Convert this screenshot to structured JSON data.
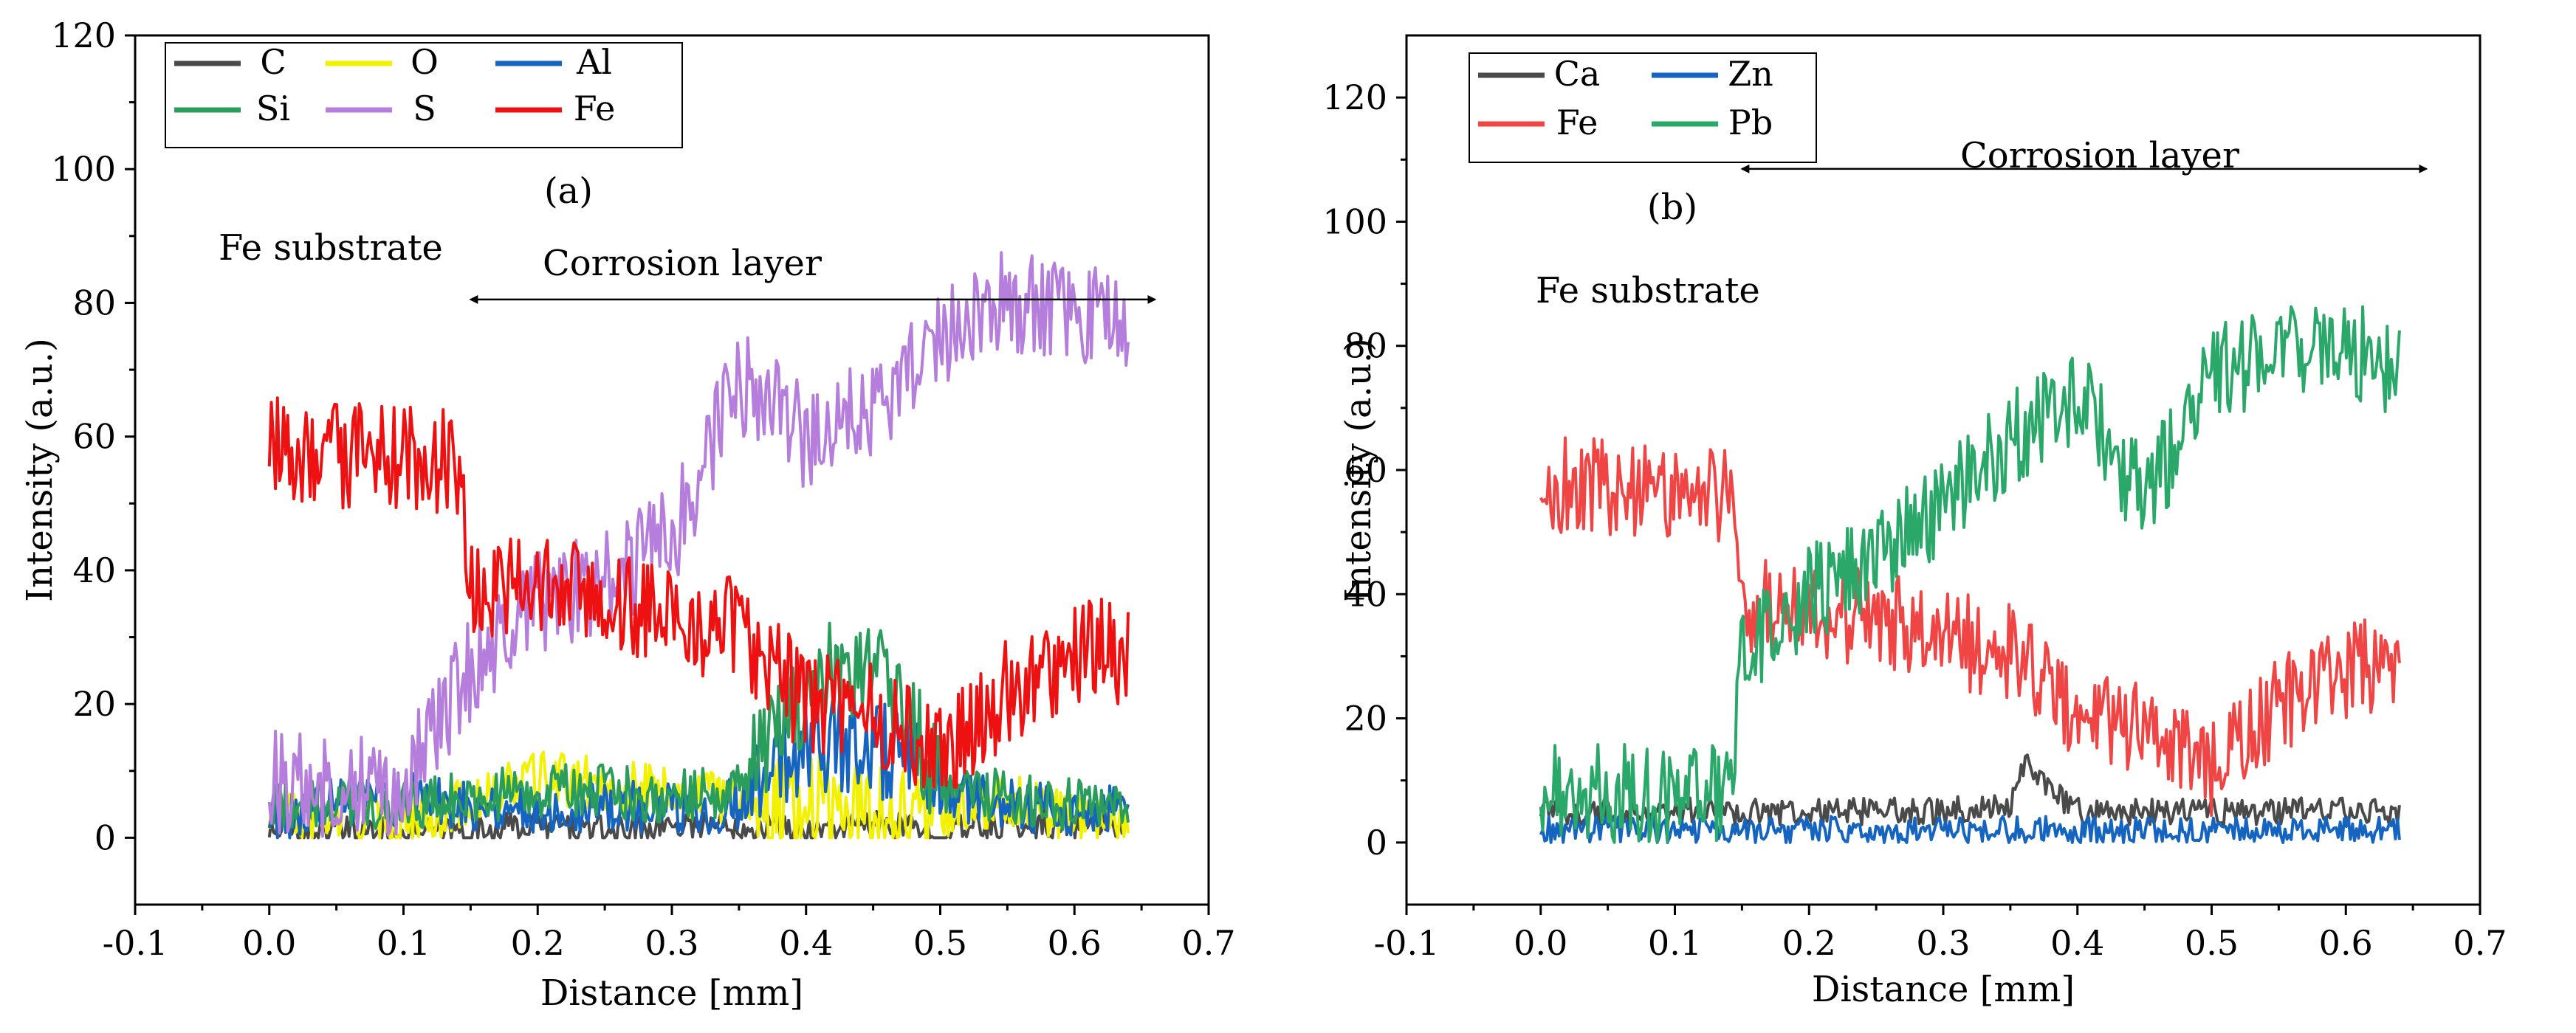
{
  "chart_data": [
    {
      "panel_label": "(a)",
      "type": "line",
      "xlabel": "Distance [mm]",
      "ylabel": "Intensity (a.u.)",
      "xlim": [
        -0.1,
        0.7
      ],
      "ylim": [
        -10,
        120
      ],
      "xticks": [
        "-0.1",
        "0.0",
        "0.1",
        "0.2",
        "0.3",
        "0.4",
        "0.5",
        "0.6",
        "0.7"
      ],
      "xtick_values": [
        -0.1,
        0.0,
        0.1,
        0.2,
        0.3,
        0.4,
        0.5,
        0.6,
        0.7
      ],
      "yticks": [
        "0",
        "20",
        "40",
        "60",
        "80",
        "100",
        "120"
      ],
      "ytick_values": [
        0,
        20,
        40,
        60,
        80,
        100,
        120
      ],
      "legend_position": "top-left",
      "legend_columns": 3,
      "annotations": {
        "substrate": "Fe substrate",
        "layer": "Corrosion layer",
        "arrow_x": [
          0.15,
          0.66
        ],
        "arrow_y": 80.5
      },
      "series": [
        {
          "name": "C",
          "color": "#4a4a4a",
          "x": [
            0.0,
            0.05,
            0.1,
            0.15,
            0.2,
            0.25,
            0.3,
            0.35,
            0.4,
            0.45,
            0.5,
            0.55,
            0.6,
            0.64
          ],
          "y": [
            1,
            1,
            1,
            1,
            2,
            1,
            2,
            2,
            1,
            2,
            1,
            2,
            2,
            2
          ]
        },
        {
          "name": "O",
          "color": "#f2f200",
          "x": [
            0.0,
            0.05,
            0.1,
            0.15,
            0.2,
            0.25,
            0.3,
            0.35,
            0.4,
            0.45,
            0.5,
            0.55,
            0.6,
            0.64
          ],
          "y": [
            3,
            3,
            3,
            5,
            9,
            8,
            7,
            6,
            5,
            4,
            4,
            6,
            3,
            3
          ]
        },
        {
          "name": "Al",
          "color": "#1565c0",
          "x": [
            0.0,
            0.05,
            0.1,
            0.15,
            0.2,
            0.25,
            0.3,
            0.35,
            0.4,
            0.45,
            0.5,
            0.55,
            0.6,
            0.64
          ],
          "y": [
            3,
            5,
            6,
            5,
            4,
            5,
            4,
            5,
            15,
            14,
            7,
            5,
            4,
            4
          ]
        },
        {
          "name": "Si",
          "color": "#2a9d5c",
          "x": [
            0.0,
            0.05,
            0.1,
            0.15,
            0.2,
            0.25,
            0.3,
            0.35,
            0.4,
            0.45,
            0.5,
            0.55,
            0.6,
            0.64
          ],
          "y": [
            5,
            5,
            5,
            6,
            7,
            7,
            6,
            7,
            22,
            28,
            8,
            6,
            5,
            6
          ]
        },
        {
          "name": "S",
          "color": "#b57edc",
          "x": [
            0.0,
            0.05,
            0.1,
            0.15,
            0.2,
            0.25,
            0.3,
            0.35,
            0.4,
            0.45,
            0.5,
            0.55,
            0.6,
            0.64
          ],
          "y": [
            8,
            8,
            8,
            25,
            35,
            38,
            45,
            68,
            60,
            65,
            75,
            80,
            80,
            75
          ]
        },
        {
          "name": "Fe",
          "color": "#ee1111",
          "x": [
            0.0,
            0.05,
            0.1,
            0.14,
            0.15,
            0.2,
            0.25,
            0.3,
            0.35,
            0.4,
            0.45,
            0.5,
            0.55,
            0.6,
            0.64
          ],
          "y": [
            58,
            57,
            57,
            56,
            38,
            37,
            36,
            33,
            31,
            20,
            18,
            12,
            22,
            28,
            28
          ]
        }
      ]
    },
    {
      "panel_label": "(b)",
      "type": "line",
      "xlabel": "Distance [mm]",
      "ylabel": "Intensity (a.u.)",
      "xlim": [
        -0.1,
        0.7
      ],
      "ylim": [
        -10,
        130
      ],
      "xticks": [
        "-0.1",
        "0.0",
        "0.1",
        "0.2",
        "0.3",
        "0.4",
        "0.5",
        "0.6",
        "0.7"
      ],
      "xtick_values": [
        -0.1,
        0.0,
        0.1,
        0.2,
        0.3,
        0.4,
        0.5,
        0.6,
        0.7
      ],
      "yticks": [
        "0",
        "20",
        "40",
        "60",
        "80",
        "100",
        "120"
      ],
      "ytick_values": [
        0,
        20,
        40,
        60,
        80,
        100,
        120
      ],
      "legend_position": "top-left",
      "legend_columns": 2,
      "annotations": {
        "substrate": "Fe substrate",
        "layer": "Corrosion layer",
        "arrow_x": [
          0.15,
          0.66
        ],
        "arrow_y": 108.5
      },
      "series": [
        {
          "name": "Ca",
          "color": "#4a4a4a",
          "x": [
            0.0,
            0.05,
            0.1,
            0.15,
            0.2,
            0.25,
            0.3,
            0.35,
            0.36,
            0.4,
            0.45,
            0.5,
            0.55,
            0.6,
            0.64
          ],
          "y": [
            5,
            5,
            5,
            5,
            5,
            5,
            5,
            6,
            13,
            5,
            5,
            5,
            5,
            5,
            5
          ]
        },
        {
          "name": "Zn",
          "color": "#1565c0",
          "x": [
            0.0,
            0.05,
            0.1,
            0.15,
            0.2,
            0.25,
            0.3,
            0.35,
            0.4,
            0.45,
            0.5,
            0.55,
            0.6,
            0.64
          ],
          "y": [
            2,
            2,
            2,
            2,
            2,
            2,
            2,
            2,
            2,
            2,
            2,
            2,
            2,
            2
          ]
        },
        {
          "name": "Fe",
          "color": "#f04545",
          "x": [
            0.0,
            0.05,
            0.1,
            0.14,
            0.15,
            0.2,
            0.25,
            0.3,
            0.35,
            0.4,
            0.45,
            0.5,
            0.55,
            0.6,
            0.64
          ],
          "y": [
            58,
            57,
            57,
            56,
            38,
            37,
            36,
            33,
            31,
            20,
            18,
            12,
            22,
            28,
            28
          ]
        },
        {
          "name": "Pb",
          "color": "#2aa86a",
          "x": [
            0.0,
            0.05,
            0.1,
            0.14,
            0.15,
            0.2,
            0.25,
            0.3,
            0.35,
            0.4,
            0.45,
            0.5,
            0.55,
            0.6,
            0.64
          ],
          "y": [
            8,
            8,
            8,
            8,
            30,
            40,
            45,
            55,
            65,
            72,
            55,
            75,
            80,
            80,
            75
          ]
        }
      ]
    }
  ]
}
